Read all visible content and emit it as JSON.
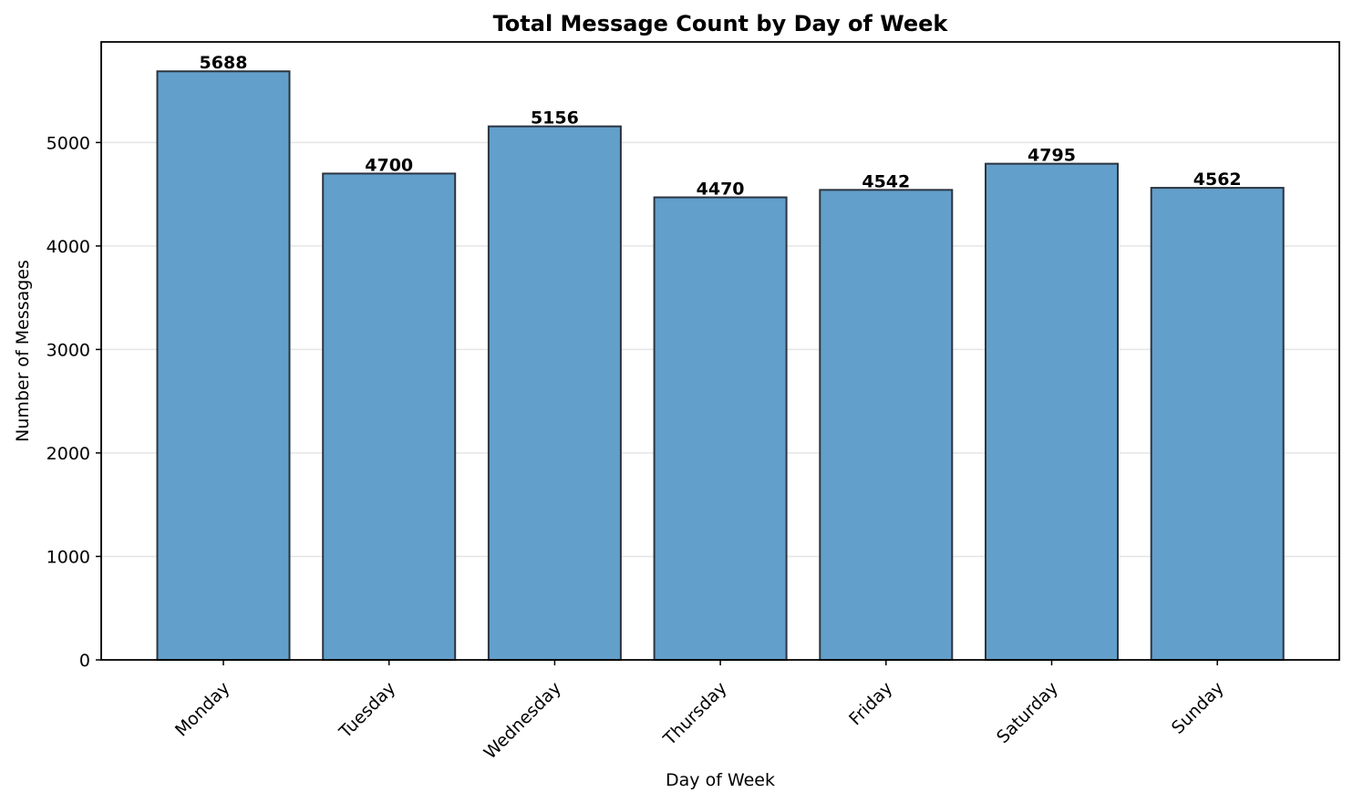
{
  "chart_data": {
    "type": "bar",
    "title": "Total Message Count by Day of Week",
    "xlabel": "Day of Week",
    "ylabel": "Number of Messages",
    "categories": [
      "Monday",
      "Tuesday",
      "Wednesday",
      "Thursday",
      "Friday",
      "Saturday",
      "Sunday"
    ],
    "values": [
      5688,
      4700,
      5156,
      4470,
      4542,
      4795,
      4562
    ],
    "ylim": [
      0,
      5972
    ],
    "yticks": [
      0,
      1000,
      2000,
      3000,
      4000,
      5000
    ],
    "ytick_labels": [
      "0",
      "1000",
      "2000",
      "3000",
      "4000",
      "5000"
    ],
    "grid": "y-axis only",
    "bar_color": "#629fca",
    "edge_color": "#2b3440",
    "grid_color": "#e5e5e5"
  }
}
